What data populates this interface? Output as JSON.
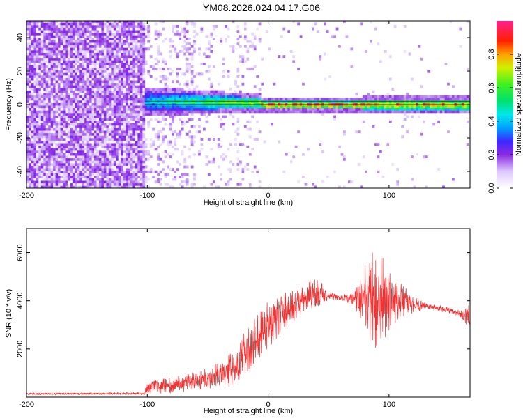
{
  "title": "YM08.2026.024.04.17.G06",
  "chart_data": [
    {
      "type": "heatmap",
      "xlabel": "Height of straight line (km)",
      "ylabel": "Frequency (Hz)",
      "xlim": [
        -200,
        167
      ],
      "ylim": [
        -50,
        50
      ],
      "x_ticks": [
        -200,
        -100,
        0,
        100
      ],
      "y_ticks": [
        -40,
        -20,
        0,
        20,
        40
      ],
      "colorbar": {
        "label": "Normalized spectral amplitude",
        "range": [
          0,
          1
        ],
        "ticks": [
          "0.0",
          "0.2",
          "0.4",
          "0.6",
          "0.8"
        ],
        "tick_values": [
          0,
          0.2,
          0.4,
          0.6,
          0.8
        ]
      },
      "regions": [
        {
          "x_range": [
            -200,
            -102
          ],
          "description": "uniform broadband noise, amplitude about 0.1-0.2"
        },
        {
          "x_range": [
            -102,
            -5
          ],
          "center_freq": [
            2,
            1
          ],
          "half_width_hz": [
            6,
            3
          ],
          "peak_amplitude": [
            0.45,
            0.8
          ]
        },
        {
          "x_range": [
            -5,
            78
          ],
          "center_freq": 0,
          "half_width_hz": 2,
          "peak_amplitude": 1.0
        },
        {
          "x_range": [
            78,
            167
          ],
          "center_freq": 0,
          "half_width_hz": 3,
          "peak_amplitude": 0.9
        }
      ],
      "reference_lines_hz": [
        0,
        2
      ]
    },
    {
      "type": "line",
      "xlabel": "Height of straight line (km)",
      "ylabel": "SNR (10 * v/v)",
      "xlim": [
        -200,
        167
      ],
      "ylim": [
        0,
        7000
      ],
      "x_ticks": [
        -200,
        -100,
        0,
        100
      ],
      "y_ticks": [
        2000,
        4000,
        6000
      ],
      "color": "#f03232",
      "series": [
        {
          "name": "SNR",
          "x": [
            -200,
            -150,
            -102,
            -101,
            -80,
            -60,
            -40,
            -25,
            -15,
            -5,
            10,
            25,
            40,
            50,
            60,
            70,
            80,
            88,
            95,
            105,
            115,
            130,
            150,
            160,
            167
          ],
          "mean": [
            130,
            140,
            150,
            400,
            500,
            700,
            900,
            1400,
            2000,
            2800,
            3400,
            3900,
            4300,
            4200,
            4100,
            4100,
            4100,
            4000,
            4000,
            4000,
            3900,
            3800,
            3600,
            3400,
            3300
          ],
          "spread": [
            50,
            50,
            60,
            300,
            350,
            450,
            600,
            900,
            1200,
            1300,
            1000,
            700,
            800,
            200,
            150,
            300,
            1500,
            2600,
            2000,
            1200,
            600,
            150,
            150,
            200,
            800
          ]
        }
      ]
    }
  ]
}
